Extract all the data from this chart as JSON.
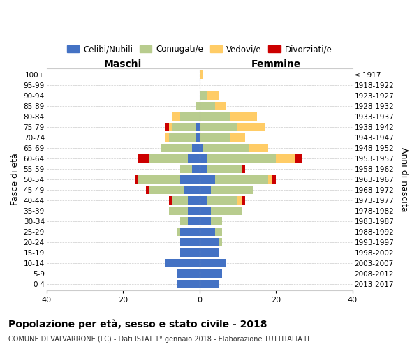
{
  "age_groups": [
    "0-4",
    "5-9",
    "10-14",
    "15-19",
    "20-24",
    "25-29",
    "30-34",
    "35-39",
    "40-44",
    "45-49",
    "50-54",
    "55-59",
    "60-64",
    "65-69",
    "70-74",
    "75-79",
    "80-84",
    "85-89",
    "90-94",
    "95-99",
    "100+"
  ],
  "birth_years": [
    "2013-2017",
    "2008-2012",
    "2003-2007",
    "1998-2002",
    "1993-1997",
    "1988-1992",
    "1983-1987",
    "1978-1982",
    "1973-1977",
    "1968-1972",
    "1963-1967",
    "1958-1962",
    "1953-1957",
    "1948-1952",
    "1943-1947",
    "1938-1942",
    "1933-1937",
    "1928-1932",
    "1923-1927",
    "1918-1922",
    "≤ 1917"
  ],
  "colors": {
    "celibi": "#4472C4",
    "coniugati": "#b8cc8e",
    "vedovi": "#ffcc66",
    "divorziati": "#cc0000"
  },
  "maschi": {
    "celibi": [
      6,
      6,
      9,
      5,
      5,
      5,
      3,
      3,
      3,
      4,
      5,
      2,
      3,
      2,
      1,
      1,
      0,
      0,
      0,
      0,
      0
    ],
    "coniugati": [
      0,
      0,
      0,
      0,
      0,
      1,
      2,
      5,
      4,
      9,
      11,
      3,
      10,
      8,
      7,
      6,
      5,
      1,
      0,
      0,
      0
    ],
    "vedovi": [
      0,
      0,
      0,
      0,
      0,
      0,
      0,
      0,
      0,
      0,
      0,
      0,
      0,
      0,
      1,
      1,
      2,
      0,
      0,
      0,
      0
    ],
    "divorziati": [
      0,
      0,
      0,
      0,
      0,
      0,
      0,
      0,
      1,
      1,
      1,
      0,
      3,
      0,
      0,
      1,
      0,
      0,
      0,
      0,
      0
    ]
  },
  "femmine": {
    "celibi": [
      5,
      6,
      7,
      5,
      5,
      4,
      3,
      3,
      2,
      3,
      4,
      2,
      2,
      1,
      0,
      0,
      0,
      0,
      0,
      0,
      0
    ],
    "coniugati": [
      0,
      0,
      0,
      0,
      1,
      2,
      3,
      8,
      8,
      11,
      14,
      9,
      18,
      12,
      8,
      10,
      8,
      4,
      2,
      0,
      0
    ],
    "vedovi": [
      0,
      0,
      0,
      0,
      0,
      0,
      0,
      0,
      1,
      0,
      1,
      0,
      5,
      5,
      4,
      7,
      7,
      3,
      3,
      0,
      1
    ],
    "divorziati": [
      0,
      0,
      0,
      0,
      0,
      0,
      0,
      0,
      1,
      0,
      1,
      1,
      2,
      0,
      0,
      0,
      0,
      0,
      0,
      0,
      0
    ]
  },
  "xlim": 40,
  "xlabel_left": "Maschi",
  "xlabel_right": "Femmine",
  "ylabel": "Fasce di età",
  "ylabel_right": "Anni di nascita",
  "title": "Popolazione per età, sesso e stato civile - 2018",
  "subtitle": "COMUNE DI VALVARRONE (LC) - Dati ISTAT 1° gennaio 2018 - Elaborazione TUTTITALIA.IT",
  "legend_labels": [
    "Celibi/Nubili",
    "Coniugati/e",
    "Vedovi/e",
    "Divorziati/e"
  ],
  "legend_colors": [
    "#4472C4",
    "#b8cc8e",
    "#ffcc66",
    "#cc0000"
  ]
}
